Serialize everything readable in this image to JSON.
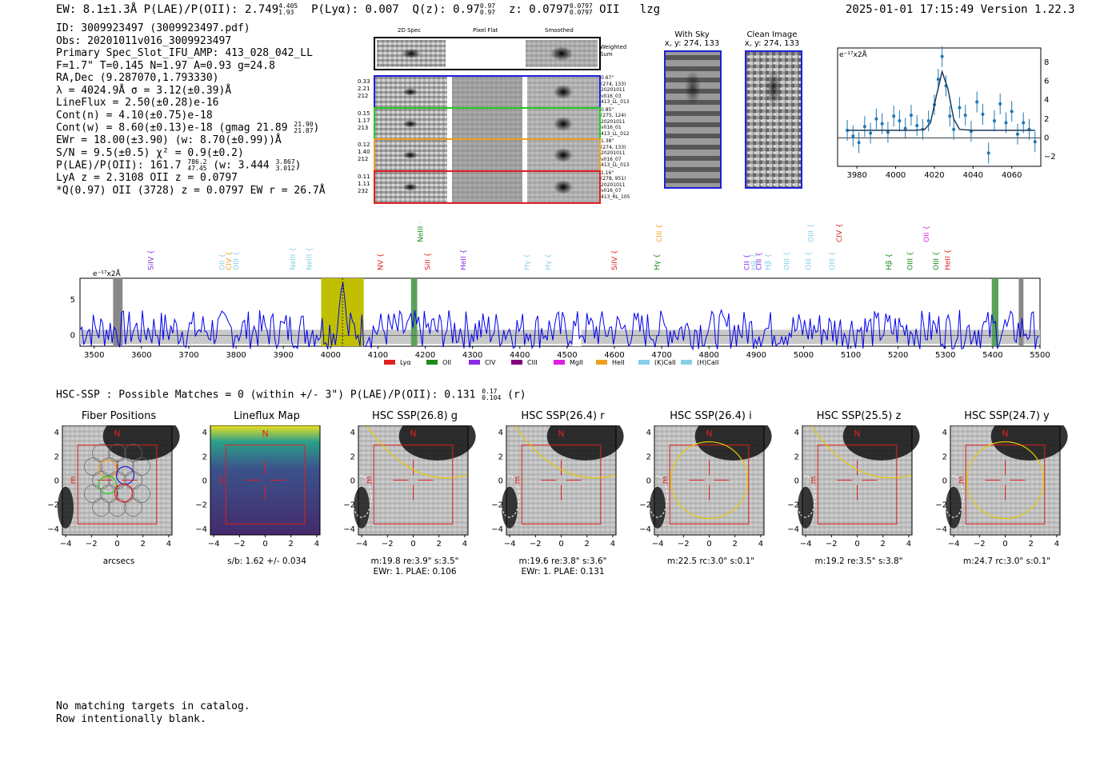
{
  "header": {
    "ew_line": "EW: 8.1±1.3Å  P(LAE)/P(OII): 2.749",
    "ew_sup": "4.405",
    "ew_sub": "1.93",
    "plya": "P(Lyα): 0.007",
    "qz": "Q(z): 0.97",
    "qz_sup": "0.97",
    "qz_sub": "0.97",
    "z": "z: 0.0797",
    "z_sup": "0.0797",
    "z_sub": "0.0797",
    "line": "OII",
    "tag": "lzg",
    "timestamp": "2025-01-01 17:15:49",
    "version": "Version 1.22.3"
  },
  "info": {
    "id": "ID: 3009923497 (3009923497.pdf)",
    "obs": "Obs: 20201011v016_3009923497",
    "slot": "Primary Spec_Slot_IFU_AMP: 413_028_042_LL",
    "params": "F=1.7\"  T=0.145  N=1.97  A=0.93  g=24.8",
    "radec": "RA,Dec (9.287070,1.793330)",
    "lambda": "λ = 4024.9Å  σ = 3.12(±0.39)Å",
    "lineflux": "LineFlux = 2.50(±0.28)e-16",
    "contn": "Cont(n) = 4.10(±0.75)e-18",
    "contw": "Cont(w) = 8.60(±0.13)e-18 (gmag 21.89",
    "contw_sup": "21.90",
    "contw_sub": "21.87",
    "ewr": "EWr = 18.00(±3.90) (w: 8.70(±0.99))Å",
    "sn": "S/N = 9.5(±0.5)  χ² = 0.9(±0.2)",
    "plae": "P(LAE)/P(OII): 161.7",
    "plae_sup": "786.2",
    "plae_sub": "47.45",
    "plae_w": "(w: 3.444",
    "plae_w_sup": "3.867",
    "plae_w_sub": "3.012",
    "lya": "LyA z = 2.3108   OII z = 0.0797",
    "q": "*Q(0.97) OII (3728) z = 0.0797   EW r = 26.7Å"
  },
  "stamps": {
    "col_titles": [
      "2D Spec",
      "Pixel Flat",
      "Smoothed"
    ],
    "weighted_sum": "Weighted Sum",
    "rows": [
      {
        "left": [
          "0.33",
          "2.21",
          "212"
        ],
        "right": [
          "0.67\"",
          "(274, 133)",
          "20201011",
          "v016_03",
          "413_LL_013"
        ],
        "color": "#1f1fd8"
      },
      {
        "left": [
          "0.15",
          "1.17",
          "213"
        ],
        "right": [
          "0.85\"",
          "(275, 124)",
          "20201011",
          "v016_01",
          "413_LL_012"
        ],
        "color": "#22cc22"
      },
      {
        "left": [
          "0.12",
          "1.40",
          "212"
        ],
        "right": [
          "1.38\"",
          "(274, 133)",
          "20201011",
          "v016_07",
          "413_LL_013"
        ],
        "color": "#f0a020"
      },
      {
        "left": [
          "0.11",
          "1.11",
          "232"
        ],
        "right": [
          "1.16\"",
          "(278, 951)",
          "20201011",
          "v016_07",
          "413_RL_105"
        ],
        "color": "#e02020"
      }
    ]
  },
  "cutouts": {
    "with_sky": "With Sky",
    "with_sky_xy": "x, y: 274, 133",
    "clean": "Clean Image",
    "clean_xy": "x, y: 274, 133"
  },
  "fit_plot": {
    "ylabel": "e⁻¹⁷x2Å",
    "xticks": [
      "3980",
      "4000",
      "4020",
      "4040",
      "4060"
    ],
    "yticks": [
      "8",
      "6",
      "4",
      "2",
      "0",
      "−2"
    ]
  },
  "spectrum": {
    "ylabel": "e⁻¹⁷x2Å",
    "xticks": [
      "3500",
      "3600",
      "3700",
      "3800",
      "3900",
      "4000",
      "4100",
      "4200",
      "4300",
      "4400",
      "4500",
      "4600",
      "4700",
      "4800",
      "4900",
      "5000",
      "5100",
      "5200",
      "5300",
      "5400",
      "5500"
    ],
    "yticks": [
      "5",
      "0"
    ],
    "line_labels": [
      {
        "text": "SiIV",
        "color": "#8a2be2"
      },
      {
        "text": "OII",
        "color": "#87ceeb"
      },
      {
        "text": "CIV",
        "color": "#f0a020"
      },
      {
        "text": "OIII",
        "color": "#87ceeb"
      },
      {
        "text": "NeIII",
        "color": "#87ceeb"
      },
      {
        "text": "NeIII",
        "color": "#87ceeb"
      },
      {
        "text": "NV",
        "color": "#e02020"
      },
      {
        "text": "NeIII",
        "color": "#1a8a1a"
      },
      {
        "text": "SiII",
        "color": "#e02020"
      },
      {
        "text": "HeII",
        "color": "#8a2be2"
      },
      {
        "text": "Hγ",
        "color": "#87ceeb"
      },
      {
        "text": "Hγ",
        "color": "#87ceeb"
      },
      {
        "text": "SiIV",
        "color": "#e02020"
      },
      {
        "text": "Hγ",
        "color": "#1a8a1a"
      },
      {
        "text": "CIII",
        "color": "#f0a020"
      },
      {
        "text": "CII",
        "color": "#8a2be2"
      },
      {
        "text": "Hβ",
        "color": "#87ceeb"
      },
      {
        "text": "CIII",
        "color": "#8a2be2"
      },
      {
        "text": "Hβ",
        "color": "#87ceeb"
      },
      {
        "text": "OIII",
        "color": "#87ceeb"
      },
      {
        "text": "OIII",
        "color": "#87ceeb"
      },
      {
        "text": "OIII",
        "color": "#87ceeb"
      },
      {
        "text": "OIII",
        "color": "#87ceeb"
      },
      {
        "text": "CIV",
        "color": "#e02020"
      },
      {
        "text": "Hβ",
        "color": "#1a8a1a"
      },
      {
        "text": "OIII",
        "color": "#1a8a1a"
      },
      {
        "text": "OII",
        "color": "#e020e0"
      },
      {
        "text": "OIII",
        "color": "#1a8a1a"
      },
      {
        "text": "HeII",
        "color": "#e02020"
      }
    ],
    "legend": [
      {
        "label": "Lyα",
        "color": "#e02020"
      },
      {
        "label": "OII",
        "color": "#1a8a1a"
      },
      {
        "label": "CIV",
        "color": "#8a2be2"
      },
      {
        "label": "CIII",
        "color": "#800080"
      },
      {
        "label": "MgII",
        "color": "#e020e0"
      },
      {
        "label": "HeII",
        "color": "#f0a020"
      },
      {
        "label": "(K)CaII",
        "color": "#87ceeb"
      },
      {
        "label": "(H)CaII",
        "color": "#87ceeb"
      }
    ]
  },
  "hsc": {
    "header": "HSC-SSP : Possible Matches = 0 (within +/- 3\")  P(LAE)/P(OII): 0.131",
    "header_sup": "0.17",
    "header_sub": "0.104",
    "header_band": "(r)",
    "panels": [
      {
        "title": "Fiber Positions",
        "caption1": "arcsecs",
        "caption2": ""
      },
      {
        "title": "Lineflux Map",
        "caption1": "s/b: 1.62 +/- 0.034",
        "caption2": ""
      },
      {
        "title": "HSC SSP(26.8) g",
        "caption1": "m:19.8  re:3.9\"  s:3.5\"",
        "caption2": "EWr: 1. PLAE: 0.106"
      },
      {
        "title": "HSC SSP(26.4) r",
        "caption1": "m:19.6  re:3.8\"  s:3.6\"",
        "caption2": "EWr: 1. PLAE: 0.131"
      },
      {
        "title": "HSC SSP(26.4) i",
        "caption1": "m:22.5 rc:3.0\"  s:0.1\"",
        "caption2": ""
      },
      {
        "title": "HSC SSP(25.5) z",
        "caption1": "m:19.2  re:3.5\"  s:3.8\"",
        "caption2": ""
      },
      {
        "title": "HSC SSP(24.7) y",
        "caption1": "m:24.7 rc:3.0\"  s:0.1\"",
        "caption2": ""
      }
    ],
    "xticks": [
      "−4",
      "−2",
      "0",
      "2",
      "4"
    ],
    "yticks": [
      "4",
      "2",
      "0",
      "−2",
      "−4"
    ],
    "north": "N",
    "east": "E"
  },
  "footer": {
    "line1": "No matching targets in catalog.",
    "line2": "Row intentionally blank."
  },
  "chart_data": [
    {
      "type": "scatter",
      "xlim": [
        3970,
        4075
      ],
      "ylim": [
        -3,
        9.5
      ],
      "ylabel": "e⁻¹⁷x2Å",
      "series": [
        {
          "x": [
            3975,
            3978,
            3981,
            3984,
            3987,
            3990,
            3993,
            3996,
            3999,
            4002,
            4005,
            4008,
            4011,
            4014,
            4017,
            4020,
            4022,
            4024,
            4026,
            4028,
            4030,
            4033,
            4036,
            4039,
            4042,
            4045,
            4048,
            4051,
            4054,
            4057,
            4060,
            4063,
            4066,
            4069,
            4072
          ],
          "values": [
            0.8,
            0.2,
            -0.5,
            1.2,
            0.5,
            2.0,
            1.5,
            0.6,
            2.3,
            1.8,
            1.0,
            2.4,
            1.3,
            0.9,
            1.8,
            3.5,
            6.2,
            8.6,
            5.5,
            2.3,
            0.9,
            3.2,
            2.4,
            0.7,
            3.8,
            2.5,
            -1.6,
            1.8,
            3.6,
            1.6,
            2.8,
            0.4,
            1.6,
            0.9,
            -0.4
          ]
        },
        {
          "x": [
            3975,
            4010,
            4015,
            4018,
            4021,
            4024,
            4027,
            4030,
            4033,
            4040,
            4072
          ],
          "values": [
            0.8,
            0.8,
            0.9,
            1.6,
            4.4,
            7.0,
            5.2,
            2.0,
            0.9,
            0.8,
            0.8
          ]
        }
      ]
    },
    {
      "type": "line",
      "xlim": [
        3470,
        5500
      ],
      "ylim": [
        -1.5,
        8
      ],
      "ylabel": "e⁻¹⁷x2Å",
      "x": [
        3500,
        3600,
        3700,
        3800,
        3900,
        4000,
        4025,
        4100,
        4200,
        4300,
        4400,
        4500,
        4600,
        4700,
        4800,
        4900,
        5000,
        5100,
        5200,
        5300,
        5400,
        5500
      ],
      "values": [
        1.0,
        2.0,
        2.0,
        1.5,
        1.0,
        1.5,
        8.0,
        1.5,
        1.5,
        1.5,
        1.5,
        1.5,
        2.0,
        1.5,
        1.5,
        2.0,
        2.0,
        1.5,
        2.0,
        2.0,
        1.5,
        1.0
      ]
    }
  ]
}
